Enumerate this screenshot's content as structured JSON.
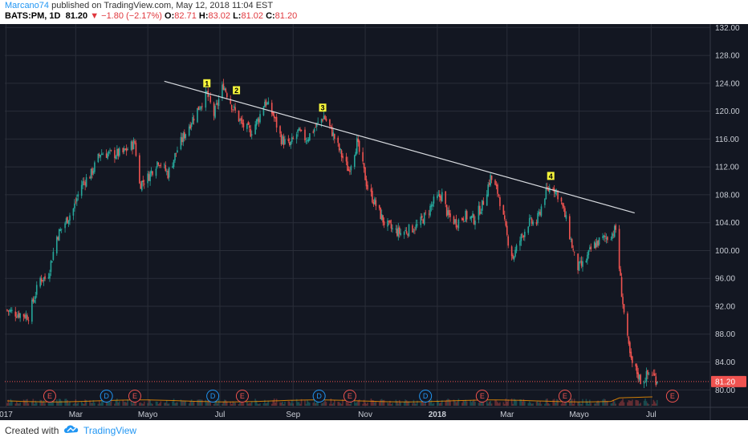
{
  "header": {
    "author": "Marcano74",
    "published": "published on TradingView.com, May 12, 2018 11:04 EST",
    "symbol": "BATS:PM, 1D",
    "last": "81.20",
    "change": "−1.80 (−2.17%)",
    "open_label": "O:",
    "open": "82.71",
    "high_label": "H:",
    "high": "83.02",
    "low_label": "L:",
    "low": "81.02",
    "close_label": "C:",
    "close": "81.20"
  },
  "footer": {
    "created_with": "Created with",
    "brand": "TradingView",
    "logo_icon": "tradingview-cloud-icon"
  },
  "colors": {
    "background": "#131722",
    "grid": "#2a2e39",
    "up": "#26a69a",
    "down": "#ef5350",
    "trendline": "#d8dbe0",
    "marker_fill": "#f5f53b",
    "price_line": "#ef5350",
    "price_label_bg": "#ef5350",
    "earnings": "#ef5350",
    "dividend": "#2196f3",
    "volume_ma": "#ff9800"
  },
  "chart_data": {
    "type": "candlestick",
    "title": "",
    "xlabel": "",
    "ylabel": "",
    "y_range": [
      77.5,
      132.5
    ],
    "y_ticks": [
      "132.00",
      "128.00",
      "124.00",
      "120.00",
      "116.00",
      "112.00",
      "108.00",
      "104.00",
      "100.00",
      "96.00",
      "92.00",
      "88.00",
      "84.00",
      "80.00"
    ],
    "x_ticks": [
      {
        "label": "017",
        "date": "2017-01-01"
      },
      {
        "label": "Mar",
        "date": "2017-03-01"
      },
      {
        "label": "Mayo",
        "date": "2017-05-01"
      },
      {
        "label": "Jul",
        "date": "2017-07-01"
      },
      {
        "label": "Sep",
        "date": "2017-09-01"
      },
      {
        "label": "Nov",
        "date": "2017-11-01"
      },
      {
        "label": "2018",
        "date": "2018-01-01",
        "bold": true
      },
      {
        "label": "Mar",
        "date": "2018-03-01"
      },
      {
        "label": "Mayo",
        "date": "2018-05-01"
      },
      {
        "label": "Jul",
        "date": "2018-07-01"
      }
    ],
    "x_range": [
      "2016-12-31",
      "2018-08-20"
    ],
    "last_price": {
      "label": "81.20",
      "value": 81.2
    },
    "grid": true,
    "price_path": [
      {
        "date": "2016-12-31",
        "price": 91.5
      },
      {
        "date": "2017-01-10",
        "price": 91.0
      },
      {
        "date": "2017-01-20",
        "price": 90.6
      },
      {
        "date": "2017-01-30",
        "price": 96.0
      },
      {
        "date": "2017-02-05",
        "price": 96.0
      },
      {
        "date": "2017-02-13",
        "price": 102.0
      },
      {
        "date": "2017-02-20",
        "price": 104.0
      },
      {
        "date": "2017-02-27",
        "price": 106.0
      },
      {
        "date": "2017-03-06",
        "price": 109.5
      },
      {
        "date": "2017-03-14",
        "price": 111.0
      },
      {
        "date": "2017-03-22",
        "price": 114.0
      },
      {
        "date": "2017-04-01",
        "price": 113.8
      },
      {
        "date": "2017-04-10",
        "price": 114.0
      },
      {
        "date": "2017-04-20",
        "price": 115.5
      },
      {
        "date": "2017-04-24",
        "price": 109.5
      },
      {
        "date": "2017-05-01",
        "price": 110.5
      },
      {
        "date": "2017-05-10",
        "price": 113.0
      },
      {
        "date": "2017-05-18",
        "price": 111.0
      },
      {
        "date": "2017-05-26",
        "price": 114.5
      },
      {
        "date": "2017-06-05",
        "price": 118.0
      },
      {
        "date": "2017-06-13",
        "price": 120.5
      },
      {
        "date": "2017-06-20",
        "price": 122.5
      },
      {
        "date": "2017-06-26",
        "price": 119.5
      },
      {
        "date": "2017-07-04",
        "price": 123.8
      },
      {
        "date": "2017-07-12",
        "price": 120.5
      },
      {
        "date": "2017-07-20",
        "price": 118.0
      },
      {
        "date": "2017-07-27",
        "price": 117.0
      },
      {
        "date": "2017-08-03",
        "price": 119.0
      },
      {
        "date": "2017-08-08",
        "price": 121.5
      },
      {
        "date": "2017-08-15",
        "price": 119.5
      },
      {
        "date": "2017-08-22",
        "price": 116.0
      },
      {
        "date": "2017-08-29",
        "price": 115.0
      },
      {
        "date": "2017-09-05",
        "price": 117.0
      },
      {
        "date": "2017-09-12",
        "price": 116.0
      },
      {
        "date": "2017-09-19",
        "price": 117.5
      },
      {
        "date": "2017-09-27",
        "price": 119.3
      },
      {
        "date": "2017-10-04",
        "price": 117.0
      },
      {
        "date": "2017-10-11",
        "price": 114.0
      },
      {
        "date": "2017-10-18",
        "price": 111.5
      },
      {
        "date": "2017-10-25",
        "price": 115.5
      },
      {
        "date": "2017-10-30",
        "price": 112.0
      },
      {
        "date": "2017-11-03",
        "price": 109.0
      },
      {
        "date": "2017-11-10",
        "price": 106.5
      },
      {
        "date": "2017-11-17",
        "price": 104.0
      },
      {
        "date": "2017-11-24",
        "price": 103.0
      },
      {
        "date": "2017-12-01",
        "price": 102.5
      },
      {
        "date": "2017-12-08",
        "price": 103.0
      },
      {
        "date": "2017-12-15",
        "price": 103.5
      },
      {
        "date": "2017-12-22",
        "price": 105.0
      },
      {
        "date": "2017-12-29",
        "price": 107.0
      },
      {
        "date": "2018-01-05",
        "price": 108.0
      },
      {
        "date": "2018-01-10",
        "price": 105.0
      },
      {
        "date": "2018-01-17",
        "price": 104.0
      },
      {
        "date": "2018-01-24",
        "price": 105.0
      },
      {
        "date": "2018-02-01",
        "price": 104.5
      },
      {
        "date": "2018-02-08",
        "price": 106.5
      },
      {
        "date": "2018-02-15",
        "price": 110.5
      },
      {
        "date": "2018-02-22",
        "price": 108.0
      },
      {
        "date": "2018-03-01",
        "price": 102.0
      },
      {
        "date": "2018-03-06",
        "price": 99.0
      },
      {
        "date": "2018-03-12",
        "price": 101.5
      },
      {
        "date": "2018-03-19",
        "price": 104.0
      },
      {
        "date": "2018-03-26",
        "price": 104.0
      },
      {
        "date": "2018-04-02",
        "price": 108.0
      },
      {
        "date": "2018-04-08",
        "price": 109.5
      },
      {
        "date": "2018-04-15",
        "price": 107.5
      },
      {
        "date": "2018-04-22",
        "price": 103.0
      },
      {
        "date": "2018-04-29",
        "price": 97.5
      },
      {
        "date": "2018-05-05",
        "price": 98.0
      },
      {
        "date": "2018-05-12",
        "price": 100.5
      },
      {
        "date": "2018-05-19",
        "price": 101.5
      },
      {
        "date": "2018-05-26",
        "price": 102.0
      },
      {
        "date": "2018-06-01",
        "price": 103.0
      },
      {
        "date": "2018-06-06",
        "price": 94.0
      },
      {
        "date": "2018-06-10",
        "price": 88.0
      },
      {
        "date": "2018-06-14",
        "price": 84.0
      },
      {
        "date": "2018-06-19",
        "price": 82.5
      },
      {
        "date": "2018-06-23",
        "price": 81.0
      },
      {
        "date": "2018-06-27",
        "price": 82.0
      },
      {
        "date": "2018-07-01",
        "price": 82.7
      },
      {
        "date": "2018-07-06",
        "price": 81.2
      }
    ],
    "trendline": [
      {
        "date": "2017-05-15",
        "price": 124.3
      },
      {
        "date": "2018-06-17",
        "price": 105.4
      }
    ],
    "markers": [
      {
        "label": "1",
        "date": "2017-06-20",
        "price": 122.8
      },
      {
        "label": "2",
        "date": "2017-07-15",
        "price": 121.8
      },
      {
        "label": "3",
        "date": "2017-09-26",
        "price": 119.3
      },
      {
        "label": "4",
        "date": "2018-04-07",
        "price": 109.5
      }
    ],
    "events": [
      {
        "label": "E",
        "type": "earnings",
        "date": "2017-02-07"
      },
      {
        "label": "D",
        "type": "dividend",
        "date": "2017-03-27"
      },
      {
        "label": "E",
        "type": "earnings",
        "date": "2017-04-20"
      },
      {
        "label": "D",
        "type": "dividend",
        "date": "2017-06-25"
      },
      {
        "label": "E",
        "type": "earnings",
        "date": "2017-07-20"
      },
      {
        "label": "D",
        "type": "dividend",
        "date": "2017-09-23"
      },
      {
        "label": "E",
        "type": "earnings",
        "date": "2017-10-19"
      },
      {
        "label": "D",
        "type": "dividend",
        "date": "2017-12-22"
      },
      {
        "label": "E",
        "type": "earnings",
        "date": "2018-02-08"
      },
      {
        "label": "E",
        "type": "earnings",
        "date": "2018-04-19"
      },
      {
        "label": "E",
        "type": "earnings",
        "date": "2018-07-19"
      }
    ]
  }
}
